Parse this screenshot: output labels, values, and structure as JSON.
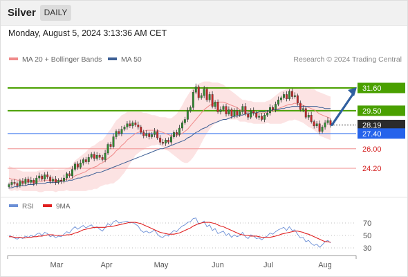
{
  "header": {
    "title": "Silver",
    "timeframe": "DAILY"
  },
  "datetime": "Monday, August 5, 2024 3:13:36 AM CET",
  "legend": {
    "ma20_label": "MA 20 + Bollinger Bands",
    "ma50_label": "MA 50",
    "credit": "Research © 2024 Trading Central",
    "ma20_color": "#f08a8a",
    "ma50_color": "#3d5f95"
  },
  "rsi_legend": {
    "rsi_label": "RSI",
    "ma_label": "9MA",
    "rsi_color": "#6b8fd6",
    "ma_color": "#e02020"
  },
  "chart_data": {
    "type": "candlestick",
    "x_ticks": [
      "Mar",
      "Apr",
      "May",
      "Jun",
      "Jul",
      "Aug"
    ],
    "price_range": [
      21.5,
      33.5
    ],
    "last_price": 28.19,
    "levels": [
      {
        "value": 31.6,
        "label": "31.60",
        "kind": "resistance"
      },
      {
        "value": 29.5,
        "label": "29.50",
        "kind": "resistance"
      },
      {
        "value": 28.19,
        "label": "28.19",
        "kind": "last"
      },
      {
        "value": 27.4,
        "label": "27.40",
        "kind": "pivot"
      },
      {
        "value": 26.0,
        "label": "26.00",
        "kind": "support"
      },
      {
        "value": 24.2,
        "label": "24.20",
        "kind": "support"
      }
    ],
    "forecast": {
      "from": 28.19,
      "to": 31.6
    },
    "closes": [
      22.7,
      22.9,
      22.8,
      22.6,
      23.0,
      22.8,
      23.2,
      22.9,
      23.1,
      22.8,
      23.3,
      23.5,
      23.2,
      23.6,
      23.4,
      23.0,
      23.2,
      22.9,
      23.1,
      23.0,
      23.3,
      23.7,
      23.5,
      24.1,
      24.6,
      24.3,
      24.7,
      25.0,
      24.8,
      25.2,
      25.5,
      25.1,
      25.4,
      25.2,
      25.0,
      25.6,
      26.4,
      26.2,
      27.1,
      27.6,
      27.4,
      27.8,
      28.0,
      28.3,
      28.1,
      28.4,
      28.2,
      28.0,
      27.5,
      27.2,
      27.4,
      27.1,
      27.3,
      27.6,
      27.0,
      26.6,
      26.5,
      26.8,
      26.6,
      27.1,
      27.5,
      27.3,
      27.9,
      28.4,
      28.7,
      29.5,
      29.8,
      31.2,
      31.7,
      30.7,
      30.9,
      31.5,
      30.5,
      31.0,
      29.9,
      30.3,
      29.4,
      29.6,
      29.9,
      29.2,
      29.6,
      29.0,
      29.5,
      29.1,
      29.4,
      29.9,
      29.2,
      28.9,
      29.5,
      29.3,
      28.9,
      29.0,
      28.7,
      29.1,
      29.3,
      29.8,
      29.6,
      30.1,
      30.5,
      30.7,
      31.0,
      30.6,
      31.3,
      30.8,
      30.9,
      30.2,
      29.6,
      29.7,
      28.9,
      29.1,
      28.5,
      28.1,
      28.3,
      27.6,
      28.0,
      28.4,
      28.6,
      28.19
    ],
    "ma20": [
      23.3,
      23.2,
      23.2,
      23.1,
      23.1,
      23.0,
      23.0,
      23.0,
      23.0,
      23.0,
      23.0,
      23.0,
      23.0,
      23.1,
      23.1,
      23.1,
      23.1,
      23.0,
      23.1,
      23.1,
      23.1,
      23.2,
      23.2,
      23.3,
      23.5,
      23.6,
      23.7,
      23.8,
      23.9,
      24.1,
      24.2,
      24.3,
      24.4,
      24.6,
      24.7,
      24.9,
      25.1,
      25.3,
      25.5,
      25.8,
      26.0,
      26.3,
      26.5,
      26.8,
      27.0,
      27.2,
      27.4,
      27.5,
      27.6,
      27.6,
      27.7,
      27.7,
      27.7,
      27.7,
      27.7,
      27.6,
      27.5,
      27.4,
      27.3,
      27.2,
      27.2,
      27.2,
      27.3,
      27.4,
      27.6,
      27.8,
      28.1,
      28.4,
      28.7,
      29.0,
      29.3,
      29.6,
      29.8,
      30.0,
      30.1,
      30.2,
      30.3,
      30.3,
      30.3,
      30.2,
      30.1,
      30.0,
      29.9,
      29.8,
      29.6,
      29.5,
      29.5,
      29.4,
      29.4,
      29.3,
      29.3,
      29.3,
      29.3,
      29.3,
      29.4,
      29.4,
      29.5,
      29.6,
      29.7,
      29.8,
      29.9,
      30.0,
      30.1,
      30.1,
      30.2,
      30.1,
      30.1,
      30.0,
      29.9,
      29.8,
      29.7,
      29.6,
      29.4,
      29.2,
      29.1,
      29.0,
      28.9,
      28.8
    ],
    "ma50": [
      22.4,
      22.4,
      22.5,
      22.5,
      22.6,
      22.6,
      22.6,
      22.7,
      22.7,
      22.7,
      22.8,
      22.8,
      22.8,
      22.8,
      22.9,
      22.9,
      22.9,
      22.9,
      22.9,
      23.0,
      23.0,
      23.0,
      23.1,
      23.1,
      23.2,
      23.3,
      23.3,
      23.4,
      23.5,
      23.5,
      23.6,
      23.7,
      23.8,
      23.8,
      23.9,
      24.0,
      24.1,
      24.2,
      24.3,
      24.4,
      24.5,
      24.6,
      24.7,
      24.8,
      24.9,
      25.0,
      25.1,
      25.2,
      25.3,
      25.4,
      25.5,
      25.6,
      25.7,
      25.8,
      25.9,
      26.0,
      26.0,
      26.1,
      26.2,
      26.3,
      26.4,
      26.5,
      26.6,
      26.7,
      26.8,
      27.0,
      27.1,
      27.3,
      27.5,
      27.6,
      27.8,
      27.9,
      28.0,
      28.2,
      28.3,
      28.4,
      28.5,
      28.6,
      28.7,
      28.7,
      28.8,
      28.9,
      29.0,
      29.0,
      29.1,
      29.1,
      29.2,
      29.2,
      29.3,
      29.3,
      29.3,
      29.4,
      29.4,
      29.4,
      29.5,
      29.5,
      29.6,
      29.6,
      29.6,
      29.7,
      29.7,
      29.8,
      29.8,
      29.9,
      29.9,
      29.9,
      29.9,
      29.9,
      29.9,
      29.9,
      29.9,
      29.9,
      29.9,
      29.8,
      29.8,
      29.7,
      29.7,
      29.7
    ],
    "bb_width": [
      1.1,
      1.1,
      1.0,
      1.0,
      0.9,
      0.9,
      0.9,
      0.9,
      0.9,
      0.9,
      0.9,
      1.0,
      1.0,
      1.0,
      1.0,
      1.0,
      1.0,
      1.0,
      1.0,
      1.0,
      1.0,
      1.0,
      1.1,
      1.2,
      1.4,
      1.5,
      1.6,
      1.7,
      1.8,
      1.9,
      2.0,
      2.0,
      2.1,
      2.1,
      2.1,
      2.2,
      2.4,
      2.5,
      2.7,
      2.8,
      2.8,
      2.8,
      2.7,
      2.6,
      2.4,
      2.2,
      2.0,
      1.9,
      1.8,
      1.7,
      1.6,
      1.5,
      1.4,
      1.4,
      1.3,
      1.3,
      1.4,
      1.5,
      1.5,
      1.6,
      1.8,
      2.0,
      2.3,
      2.6,
      2.9,
      3.1,
      3.2,
      3.2,
      3.1,
      3.0,
      2.8,
      2.6,
      2.4,
      2.2,
      2.0,
      1.9,
      1.8,
      1.7,
      1.6,
      1.5,
      1.4,
      1.3,
      1.2,
      1.1,
      1.1,
      1.0,
      1.0,
      1.0,
      1.0,
      1.0,
      1.0,
      1.0,
      1.0,
      1.0,
      1.0,
      1.1,
      1.2,
      1.3,
      1.4,
      1.5,
      1.5,
      1.5,
      1.5,
      1.5,
      1.5,
      1.5,
      1.6,
      1.6,
      1.7,
      1.8,
      1.8,
      1.9,
      1.9,
      2.0,
      2.0,
      2.0,
      2.0,
      2.0
    ],
    "rsi": {
      "ticks": [
        70,
        50,
        30
      ],
      "range": [
        20,
        80
      ],
      "values": [
        50,
        48,
        46,
        44,
        47,
        45,
        49,
        47,
        50,
        48,
        52,
        54,
        50,
        55,
        53,
        48,
        50,
        46,
        49,
        48,
        52,
        56,
        54,
        60,
        64,
        60,
        63,
        66,
        62,
        65,
        67,
        62,
        64,
        60,
        57,
        63,
        69,
        66,
        72,
        74,
        70,
        71,
        72,
        73,
        70,
        71,
        68,
        65,
        58,
        55,
        57,
        54,
        56,
        59,
        52,
        48,
        47,
        51,
        49,
        54,
        58,
        56,
        61,
        65,
        67,
        71,
        72,
        77,
        78,
        68,
        70,
        73,
        64,
        67,
        58,
        61,
        53,
        55,
        57,
        50,
        53,
        47,
        51,
        48,
        50,
        55,
        48,
        45,
        51,
        49,
        45,
        46,
        43,
        47,
        49,
        54,
        52,
        56,
        59,
        61,
        63,
        58,
        64,
        58,
        59,
        52,
        46,
        47,
        40,
        42,
        37,
        34,
        36,
        31,
        35,
        40,
        42,
        38
      ],
      "ma": [
        48,
        48,
        47,
        47,
        47,
        46,
        46,
        47,
        47,
        48,
        48,
        49,
        49,
        50,
        51,
        51,
        51,
        50,
        50,
        50,
        50,
        51,
        51,
        52,
        54,
        55,
        57,
        59,
        60,
        61,
        62,
        63,
        63,
        63,
        63,
        63,
        64,
        64,
        65,
        66,
        67,
        68,
        69,
        70,
        71,
        71,
        71,
        70,
        69,
        67,
        65,
        63,
        61,
        59,
        57,
        55,
        54,
        53,
        52,
        52,
        52,
        53,
        54,
        56,
        58,
        60,
        62,
        65,
        67,
        69,
        70,
        71,
        71,
        71,
        70,
        69,
        67,
        65,
        64,
        62,
        60,
        58,
        56,
        54,
        52,
        51,
        50,
        50,
        49,
        49,
        49,
        48,
        47,
        47,
        47,
        47,
        48,
        49,
        50,
        52,
        53,
        54,
        55,
        56,
        57,
        57,
        56,
        55,
        53,
        52,
        50,
        48,
        46,
        44,
        42,
        40,
        40,
        39
      ]
    }
  }
}
